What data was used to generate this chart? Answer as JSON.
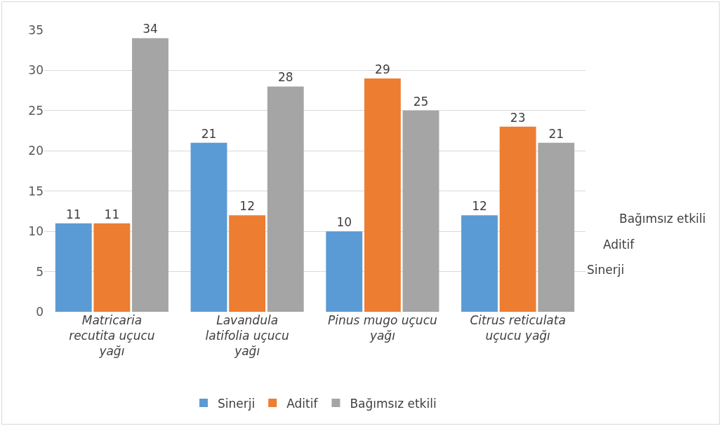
{
  "chart_data": {
    "type": "bar",
    "categories": [
      "Matricaria recutita uçucu yağı",
      "Lavandula latifolia uçucu yağı",
      "Pinus mugo uçucu yağı",
      "Citrus reticulata uçucu yağı"
    ],
    "series": [
      {
        "name": "Sinerji",
        "color": "#5b9bd5",
        "values": [
          11,
          21,
          10,
          12
        ]
      },
      {
        "name": "Aditif",
        "color": "#ed7d31",
        "values": [
          11,
          12,
          29,
          23
        ]
      },
      {
        "name": "Bağımsız etkili",
        "color": "#a5a5a5",
        "values": [
          34,
          28,
          25,
          21
        ]
      }
    ],
    "ylim": [
      0,
      35
    ],
    "yticks": [
      0,
      5,
      10,
      15,
      20,
      25,
      30,
      35
    ],
    "grid": "y",
    "legend": "bottom",
    "data_labels": true
  }
}
